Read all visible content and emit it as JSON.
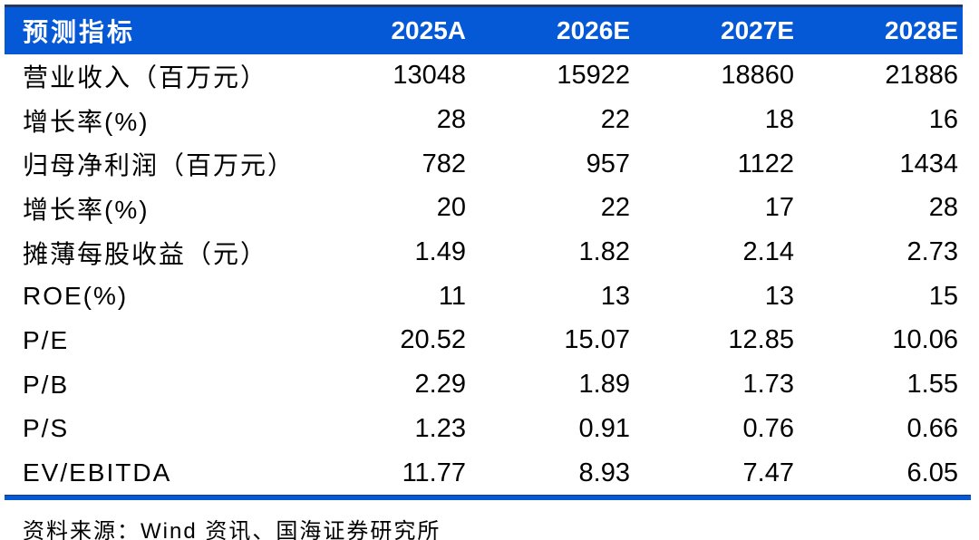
{
  "table": {
    "header": {
      "indicator_label": "预测指标",
      "columns": [
        "2025A",
        "2026E",
        "2027E",
        "2028E"
      ]
    },
    "rows": [
      {
        "label": "营业收入（百万元）",
        "values": [
          "13048",
          "15922",
          "18860",
          "21886"
        ]
      },
      {
        "label": "增长率(%)",
        "values": [
          "28",
          "22",
          "18",
          "16"
        ]
      },
      {
        "label": "归母净利润（百万元）",
        "values": [
          "782",
          "957",
          "1122",
          "1434"
        ]
      },
      {
        "label": "增长率(%)",
        "values": [
          "20",
          "22",
          "17",
          "28"
        ]
      },
      {
        "label": "摊薄每股收益（元）",
        "values": [
          "1.49",
          "1.82",
          "2.14",
          "2.73"
        ]
      },
      {
        "label": "ROE(%)",
        "values": [
          "11",
          "13",
          "13",
          "15"
        ]
      },
      {
        "label": "P/E",
        "values": [
          "20.52",
          "15.07",
          "12.85",
          "10.06"
        ]
      },
      {
        "label": "P/B",
        "values": [
          "2.29",
          "1.89",
          "1.73",
          "1.55"
        ]
      },
      {
        "label": "P/S",
        "values": [
          "1.23",
          "0.91",
          "0.76",
          "0.66"
        ]
      },
      {
        "label": "EV/EBITDA",
        "values": [
          "11.77",
          "8.93",
          "7.47",
          "6.05"
        ]
      }
    ]
  },
  "footer": {
    "source_text": "资料来源：Wind 资讯、国海证券研究所"
  },
  "colors": {
    "header_bg": "#0659d6",
    "header_text": "#ffffff",
    "header_top_border": "#1f3864",
    "bottom_rule": "#0659d6",
    "body_text": "#000000"
  }
}
